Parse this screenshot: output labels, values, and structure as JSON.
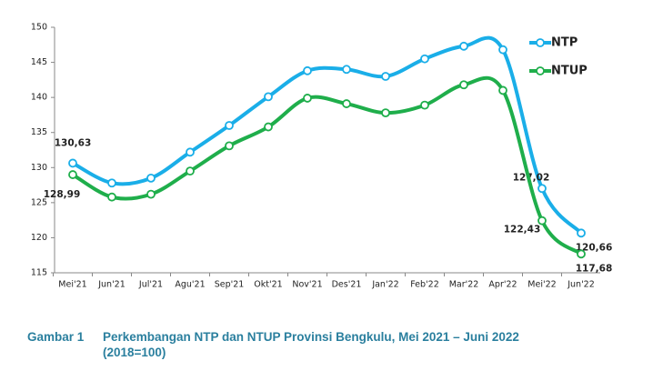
{
  "chart_data": {
    "type": "line",
    "categories": [
      "Mei'21",
      "Jun'21",
      "Jul'21",
      "Agu'21",
      "Sep'21",
      "Okt'21",
      "Nov'21",
      "Des'21",
      "Jan'22",
      "Feb'22",
      "Mar'22",
      "Apr'22",
      "Mei'22",
      "Jun'22"
    ],
    "series": [
      {
        "name": "NTP",
        "color": "#1aaee8",
        "values": [
          130.63,
          127.8,
          128.5,
          132.2,
          136.0,
          140.1,
          143.8,
          144.0,
          143.0,
          145.5,
          147.3,
          146.8,
          127.02,
          120.66
        ],
        "value_labels": [
          "130,63",
          null,
          null,
          null,
          null,
          null,
          null,
          null,
          null,
          null,
          null,
          null,
          "127,02",
          "120,66"
        ]
      },
      {
        "name": "NTUP",
        "color": "#1fae4b",
        "values": [
          128.99,
          125.8,
          126.2,
          129.5,
          133.1,
          135.8,
          139.9,
          139.1,
          137.8,
          138.9,
          141.8,
          141.0,
          122.43,
          117.68
        ],
        "value_labels": [
          "128,99",
          null,
          null,
          null,
          null,
          null,
          null,
          null,
          null,
          null,
          null,
          null,
          "122,43",
          "117,68"
        ]
      }
    ],
    "ylim": [
      115,
      150
    ],
    "yticks": [
      115,
      120,
      125,
      130,
      135,
      140,
      145,
      150
    ],
    "legend": "top-right"
  },
  "caption": {
    "label": "Gambar 1",
    "text": "Perkembangan NTP dan NTUP Provinsi Bengkulu, Mei 2021 – Juni 2022 (2018=100)"
  }
}
